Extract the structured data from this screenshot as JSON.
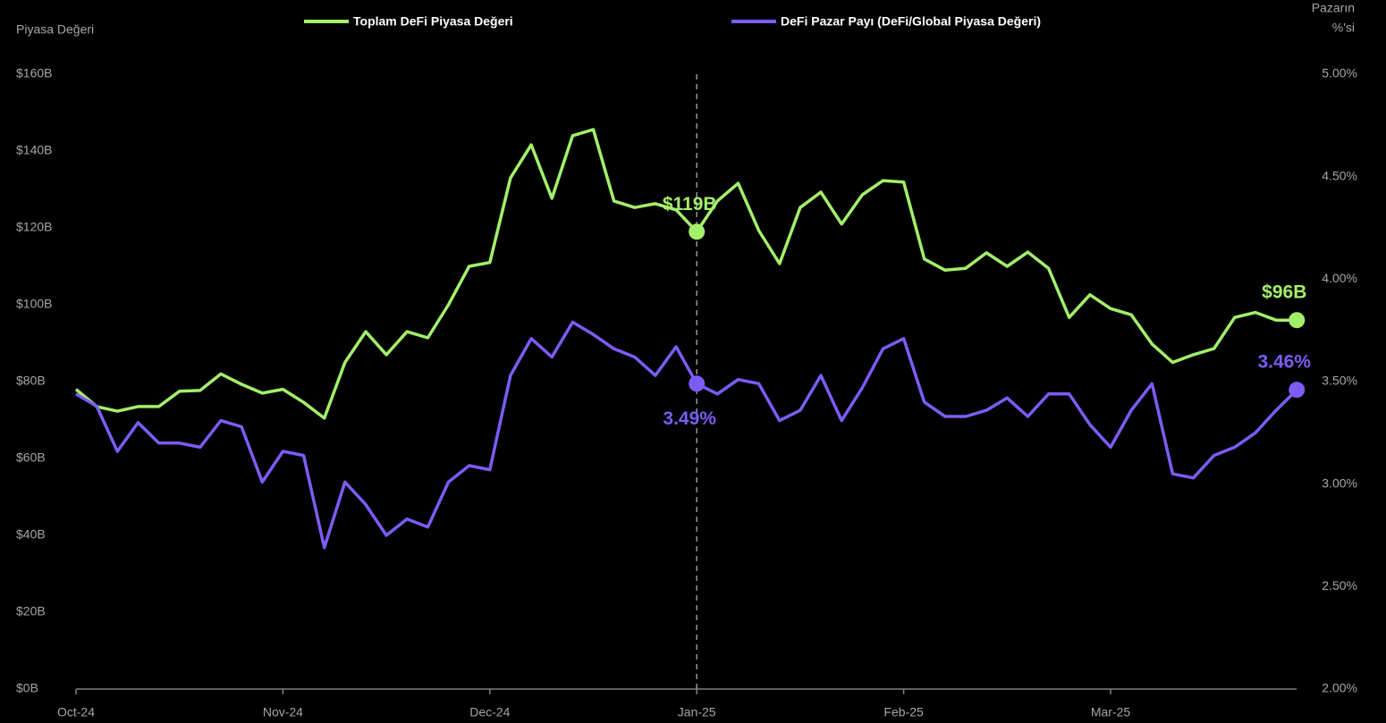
{
  "chart_data": {
    "type": "line",
    "y_label": "Piyasa Değeri",
    "y2_label": [
      "Pazarın",
      "%'si"
    ],
    "categories": [
      "Oct-24",
      null,
      null,
      null,
      null,
      null,
      null,
      null,
      null,
      null,
      "Nov-24",
      null,
      null,
      null,
      null,
      null,
      null,
      null,
      null,
      null,
      "Dec-24",
      null,
      null,
      null,
      null,
      null,
      null,
      null,
      null,
      null,
      "Jan-25",
      null,
      null,
      null,
      null,
      null,
      null,
      null,
      null,
      null,
      "Feb-25",
      null,
      null,
      null,
      null,
      null,
      null,
      null,
      null,
      null,
      "Mar-25",
      null,
      null,
      null,
      null,
      null,
      null,
      null,
      null,
      null
    ],
    "series": [
      {
        "name": "Toplam DeFi Piyasa Değeri",
        "color": "#a3ef6a",
        "axis": "y",
        "values": [
          78,
          73.5,
          72.3,
          73.5,
          73.5,
          77.5,
          77.7,
          82,
          79.3,
          77,
          78,
          74.6,
          70.5,
          85,
          93,
          87,
          93,
          91.4,
          100,
          110,
          111,
          133,
          141.6,
          127.7,
          144,
          145.6,
          127,
          125.3,
          126.3,
          124.7,
          119,
          127,
          131.6,
          119.3,
          110.7,
          125.3,
          129.3,
          121,
          128.6,
          132.3,
          131.9,
          111.9,
          109,
          109.5,
          113.5,
          110,
          113.7,
          109.5,
          96.7,
          102.6,
          99,
          97.4,
          89.8,
          85,
          87,
          88.6,
          96.7,
          98,
          96,
          96
        ],
        "value_labels": [
          null,
          null,
          null,
          null,
          null,
          null,
          null,
          null,
          null,
          null,
          null,
          null,
          null,
          null,
          null,
          null,
          null,
          null,
          null,
          null,
          null,
          null,
          null,
          null,
          null,
          null,
          null,
          null,
          null,
          null,
          "$119B",
          null,
          null,
          null,
          null,
          null,
          null,
          null,
          null,
          null,
          null,
          null,
          null,
          null,
          null,
          null,
          null,
          null,
          null,
          null,
          null,
          null,
          null,
          null,
          null,
          null,
          null,
          null,
          null,
          "$96B"
        ]
      },
      {
        "name": "DeFi Pazar Payı (DeFi/Global Piyasa Değeri)",
        "color": "#7c5cf6",
        "axis": "y2",
        "values": [
          3.44,
          3.38,
          3.16,
          3.3,
          3.2,
          3.2,
          3.18,
          3.31,
          3.28,
          3.01,
          3.16,
          3.14,
          2.69,
          3.01,
          2.9,
          2.75,
          2.83,
          2.79,
          3.01,
          3.09,
          3.07,
          3.53,
          3.71,
          3.62,
          3.79,
          3.73,
          3.66,
          3.62,
          3.53,
          3.67,
          3.49,
          3.44,
          3.51,
          3.49,
          3.31,
          3.36,
          3.53,
          3.31,
          3.47,
          3.66,
          3.71,
          3.4,
          3.33,
          3.33,
          3.36,
          3.42,
          3.33,
          3.44,
          3.44,
          3.29,
          3.18,
          3.36,
          3.49,
          3.05,
          3.03,
          3.14,
          3.18,
          3.25,
          3.36,
          3.46
        ],
        "value_labels": [
          null,
          null,
          null,
          null,
          null,
          null,
          null,
          null,
          null,
          null,
          null,
          null,
          null,
          null,
          null,
          null,
          null,
          null,
          null,
          null,
          null,
          null,
          null,
          null,
          null,
          null,
          null,
          null,
          null,
          null,
          "3.49%",
          null,
          null,
          null,
          null,
          null,
          null,
          null,
          null,
          null,
          null,
          null,
          null,
          null,
          null,
          null,
          null,
          null,
          null,
          null,
          null,
          null,
          null,
          null,
          null,
          null,
          null,
          null,
          null,
          "3.46%"
        ]
      }
    ],
    "ylim": [
      0,
      160
    ],
    "yticks": [
      {
        "value": 0,
        "label": "$0B"
      },
      {
        "value": 20,
        "label": "$20B"
      },
      {
        "value": 40,
        "label": "$40B"
      },
      {
        "value": 60,
        "label": "$60B"
      },
      {
        "value": 80,
        "label": "$80B"
      },
      {
        "value": 100,
        "label": "$100B"
      },
      {
        "value": 120,
        "label": "$120B"
      },
      {
        "value": 140,
        "label": "$140B"
      },
      {
        "value": 160,
        "label": "$160B"
      }
    ],
    "y2lim": [
      2,
      5
    ],
    "y2ticks": [
      {
        "value": 2,
        "label": "2.00%"
      },
      {
        "value": 2.5,
        "label": "2.50%"
      },
      {
        "value": 3,
        "label": "3.00%"
      },
      {
        "value": 3.5,
        "label": "3.50%"
      },
      {
        "value": 4,
        "label": "4.00%"
      },
      {
        "value": 4.5,
        "label": "4.50%"
      },
      {
        "value": 5,
        "label": "5.00%"
      }
    ],
    "legend": "top"
  }
}
